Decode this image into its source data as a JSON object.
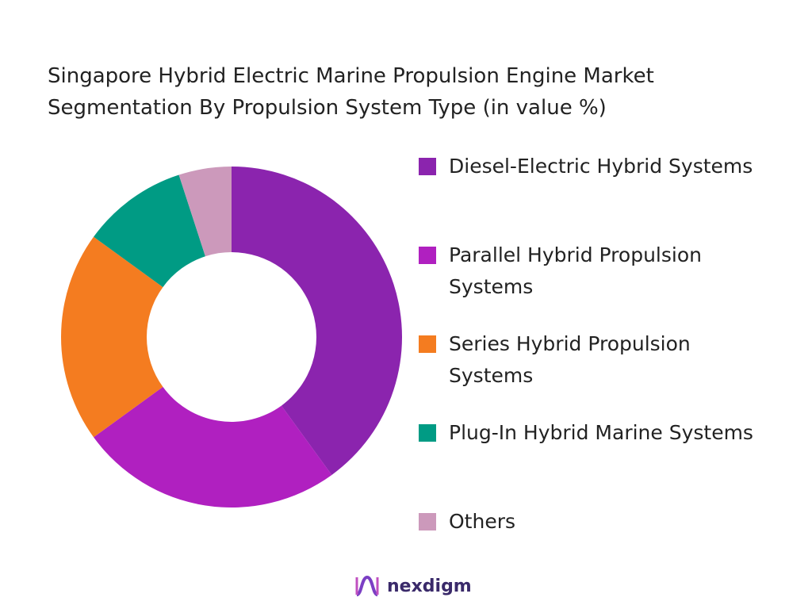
{
  "chart_data": {
    "type": "donut",
    "title": "Singapore Hybrid Electric Marine Propulsion Engine Market Segmentation By Propulsion System Type (in value %)",
    "categories": [
      "Diesel-Electric Hybrid Systems",
      "Parallel Hybrid Propulsion Systems",
      "Series Hybrid Propulsion Systems",
      "Plug-In Hybrid Marine Systems",
      "Others"
    ],
    "values": [
      40,
      25,
      20,
      10,
      5
    ],
    "colors": [
      "#8b24ae",
      "#b020c0",
      "#f47c20",
      "#009b84",
      "#cc99bb"
    ],
    "legend": "right"
  },
  "footer": {
    "brand": "nexdigm"
  }
}
